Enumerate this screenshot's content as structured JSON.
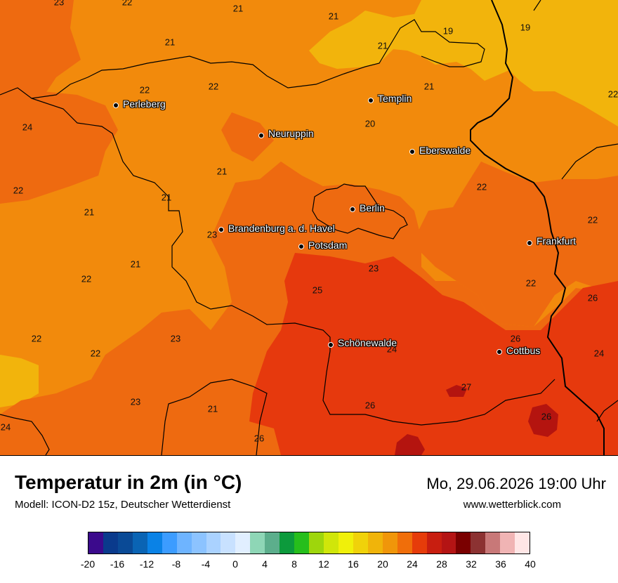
{
  "header": {
    "title": "Temperatur in 2m (in °C)",
    "model": "Modell: ICON-D2 15z, Deutscher Wetterdienst",
    "datetime": "Mo, 29.06.2026 19:00 Uhr",
    "website": "www.wetterblick.com"
  },
  "cities": [
    "Perleberg",
    "Templin",
    "Neuruppin",
    "Eberswalde",
    "Berlin",
    "Brandenburg a. d. Havel",
    "Potsdam",
    "Frankfurt",
    "Schönewalde",
    "Cottbus"
  ],
  "temperature_labels": [
    "23",
    "22",
    "21",
    "21",
    "19",
    "19",
    "21",
    "21",
    "22",
    "22",
    "24",
    "21",
    "20",
    "22",
    "21",
    "21",
    "21",
    "22",
    "22",
    "23",
    "23",
    "25",
    "21",
    "22",
    "22",
    "22",
    "26",
    "23",
    "26",
    "24",
    "24",
    "27",
    "26",
    "23",
    "21",
    "26",
    "26",
    "24"
  ],
  "legend": {
    "ticks": [
      "-20",
      "-16",
      "-12",
      "-8",
      "-4",
      "0",
      "4",
      "8",
      "12",
      "16",
      "20",
      "24",
      "28",
      "32",
      "36",
      "40"
    ],
    "colors": [
      "#3b0a8c",
      "#0a3a8c",
      "#0a4a96",
      "#0a64b4",
      "#0a82e6",
      "#3c9cff",
      "#6eb4ff",
      "#8cc3ff",
      "#aad2ff",
      "#c8e1ff",
      "#e1efff",
      "#8ed6b6",
      "#5cae8c",
      "#0c9a3c",
      "#26be1c",
      "#9ed60c",
      "#d0e60a",
      "#f0f00a",
      "#f0d20a",
      "#f0b40a",
      "#f0960a",
      "#f06e0a",
      "#e63c0a",
      "#c81e10",
      "#b41414",
      "#7a0000",
      "#8c3232",
      "#c87878",
      "#f0b4b4",
      "#ffe6e6"
    ]
  },
  "map_colors": {
    "t19": "#f2b40c",
    "t21": "#f28a0c",
    "t23": "#ee6a10",
    "t25": "#e6390d",
    "t27": "#b4140f"
  }
}
